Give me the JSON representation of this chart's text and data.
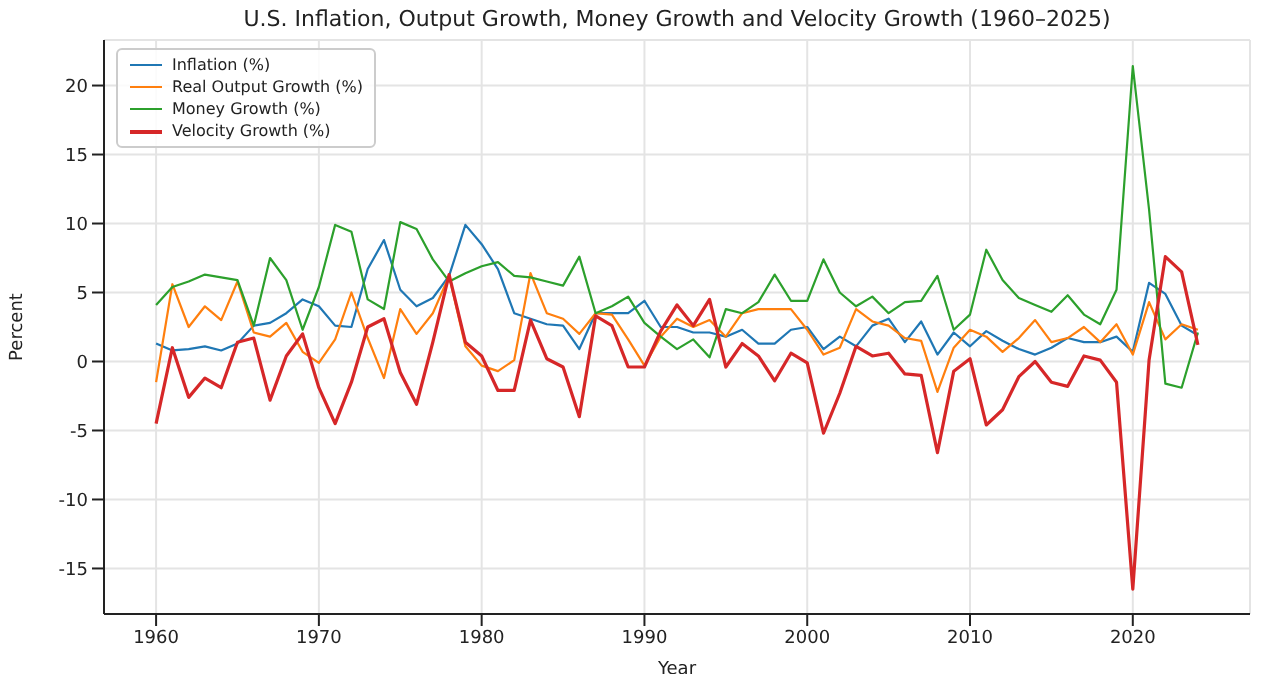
{
  "chart_data": {
    "type": "line",
    "title": "U.S. Inflation, Output Growth, Money Growth and Velocity Growth (1960–2025)",
    "xlabel": "Year",
    "ylabel": "Percent",
    "x": [
      1960,
      1961,
      1962,
      1963,
      1964,
      1965,
      1966,
      1967,
      1968,
      1969,
      1970,
      1971,
      1972,
      1973,
      1974,
      1975,
      1976,
      1977,
      1978,
      1979,
      1980,
      1981,
      1982,
      1983,
      1984,
      1985,
      1986,
      1987,
      1988,
      1989,
      1990,
      1991,
      1992,
      1993,
      1994,
      1995,
      1996,
      1997,
      1998,
      1999,
      2000,
      2001,
      2002,
      2003,
      2004,
      2005,
      2006,
      2007,
      2008,
      2009,
      2010,
      2011,
      2012,
      2013,
      2014,
      2015,
      2016,
      2017,
      2018,
      2019,
      2020,
      2021,
      2022,
      2023,
      2024
    ],
    "series": [
      {
        "name": "Inflation (%)",
        "color": "#1f77b4",
        "values": [
          1.3,
          0.8,
          0.9,
          1.1,
          0.8,
          1.3,
          2.6,
          2.8,
          3.5,
          4.5,
          4.0,
          2.6,
          2.5,
          6.7,
          8.8,
          5.2,
          4.0,
          4.6,
          6.2,
          9.9,
          8.5,
          6.7,
          3.5,
          3.1,
          2.7,
          2.6,
          0.9,
          3.5,
          3.5,
          3.5,
          4.4,
          2.5,
          2.5,
          2.1,
          2.1,
          1.8,
          2.3,
          1.3,
          1.3,
          2.3,
          2.5,
          0.9,
          1.8,
          1.1,
          2.6,
          3.1,
          1.4,
          2.9,
          0.5,
          2.1,
          1.1,
          2.2,
          1.5,
          0.9,
          0.5,
          1.0,
          1.7,
          1.4,
          1.4,
          1.8,
          0.7,
          5.7,
          4.9,
          2.6,
          1.9
        ]
      },
      {
        "name": "Real Output Growth (%)",
        "color": "#ff7f0e",
        "values": [
          -1.5,
          5.6,
          2.5,
          4.0,
          3.0,
          5.8,
          2.1,
          1.8,
          2.8,
          0.7,
          -0.1,
          1.6,
          5.0,
          1.7,
          -1.2,
          3.8,
          2.0,
          3.5,
          6.2,
          1.1,
          -0.3,
          -0.7,
          0.1,
          6.4,
          3.5,
          3.1,
          2.0,
          3.5,
          3.4,
          1.6,
          -0.3,
          1.8,
          3.1,
          2.5,
          3.0,
          1.8,
          3.5,
          3.8,
          3.8,
          3.8,
          2.3,
          0.5,
          1.0,
          3.8,
          2.9,
          2.6,
          1.7,
          1.5,
          -2.2,
          1.0,
          2.3,
          1.8,
          0.7,
          1.7,
          3.0,
          1.4,
          1.7,
          2.5,
          1.4,
          2.7,
          0.5,
          4.3,
          1.6,
          2.7,
          2.3
        ]
      },
      {
        "name": "Money Growth (%)",
        "color": "#2ca02c",
        "values": [
          4.1,
          5.4,
          5.8,
          6.3,
          6.1,
          5.9,
          2.6,
          7.5,
          5.9,
          2.3,
          5.4,
          9.9,
          9.4,
          4.5,
          3.8,
          10.1,
          9.6,
          7.4,
          5.8,
          6.4,
          6.9,
          7.2,
          6.2,
          6.1,
          5.8,
          5.5,
          7.6,
          3.5,
          4.0,
          4.7,
          2.8,
          1.8,
          0.9,
          1.6,
          0.3,
          3.8,
          3.5,
          4.3,
          6.3,
          4.4,
          4.4,
          7.4,
          5.0,
          4.0,
          4.7,
          3.5,
          4.3,
          4.4,
          6.2,
          2.3,
          3.4,
          8.1,
          5.9,
          4.6,
          4.1,
          3.6,
          4.8,
          3.4,
          2.7,
          5.2,
          21.4,
          11.0,
          -1.6,
          -1.9,
          2.1
        ]
      },
      {
        "name": "Velocity Growth (%)",
        "color": "#d62728",
        "values": [
          -4.5,
          1.0,
          -2.6,
          -1.2,
          -1.9,
          1.4,
          1.7,
          -2.8,
          0.4,
          2.0,
          -1.9,
          -4.5,
          -1.5,
          2.5,
          3.1,
          -0.8,
          -3.1,
          1.4,
          6.3,
          1.4,
          0.4,
          -2.1,
          -2.1,
          3.0,
          0.2,
          -0.4,
          -4.0,
          3.3,
          2.6,
          -0.4,
          -0.4,
          2.2,
          4.1,
          2.6,
          4.5,
          -0.4,
          1.3,
          0.4,
          -1.4,
          0.6,
          -0.1,
          -5.2,
          -2.3,
          1.1,
          0.4,
          0.6,
          -0.9,
          -1.0,
          -6.6,
          -0.7,
          0.2,
          -4.6,
          -3.5,
          -1.1,
          0.0,
          -1.5,
          -1.8,
          0.4,
          0.1,
          -1.5,
          -16.5,
          0.1,
          7.6,
          6.5,
          1.2
        ]
      }
    ],
    "xlim": [
      1956.8,
      2027.2
    ],
    "xticks": [
      1960,
      1970,
      1980,
      1990,
      2000,
      2010,
      2020
    ],
    "ylim": [
      -18.3,
      23.3
    ],
    "yticks": [
      -15,
      -10,
      -5,
      0,
      5,
      10,
      15,
      20
    ],
    "grid": true,
    "legend": "top left",
    "marker": "none",
    "line_style": "solid"
  }
}
